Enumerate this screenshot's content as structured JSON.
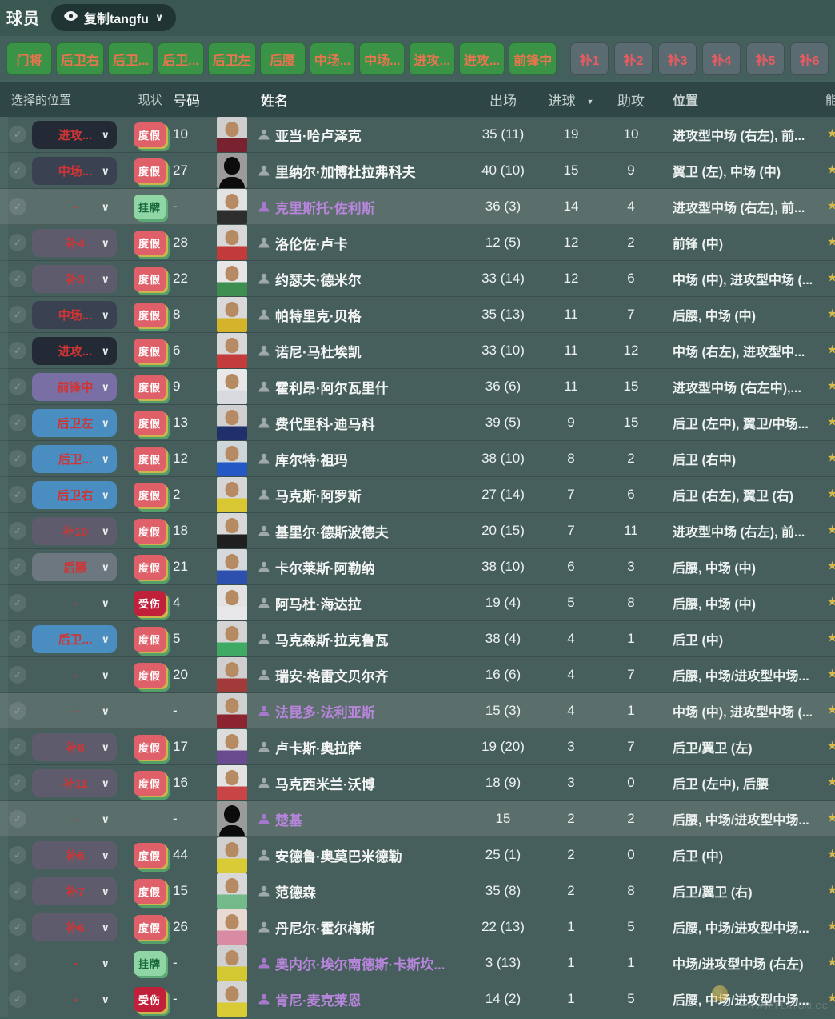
{
  "topbar": {
    "title": "球员",
    "view_dropdown": "复制tangfu"
  },
  "filters": {
    "positions": [
      "门将",
      "后卫右",
      "后卫...",
      "后卫...",
      "后卫左",
      "后腰",
      "中场...",
      "中场...",
      "进攻...",
      "进攻...",
      "前锋中"
    ],
    "subs": [
      "补1",
      "补2",
      "补3",
      "补4",
      "补5",
      "补6"
    ]
  },
  "colors": {
    "accent_green_button": "#3a9347",
    "button_text_orange": "#e9744e",
    "sub_button_gray": "#5b6b72",
    "sub_button_text_red": "#ef5a60",
    "badge_vacation": "#e0606a",
    "badge_listed": "#8fd6a4",
    "badge_injured": "#c02039",
    "purple_name": "#b885dc",
    "star_yellow": "#d9b84a"
  },
  "pill_styles": {
    "dark": "#242a35",
    "slate": "#3a4150",
    "sub": "#5e5c6c",
    "purple": "#7a6fa5",
    "blue": "#4a8dc0",
    "gray": "#6d7780",
    "none": "transparent"
  },
  "table": {
    "headers": {
      "selected_position": "选择的位置",
      "status": "现状",
      "number": "号码",
      "name": "姓名",
      "appearances": "出场",
      "goals": "进球",
      "assists": "助攻",
      "position": "位置",
      "ability_partial": "能"
    },
    "sort_column": "进球",
    "rows": [
      {
        "sel": "进攻...",
        "pill": "dark",
        "status": "度假",
        "st": "vac",
        "num": "10",
        "name": "亚当·哈卢泽克",
        "purple": false,
        "hl": false,
        "apps": "35 (11)",
        "goals": "19",
        "assists": "10",
        "pos": "进攻型中场 (右左), 前...",
        "photo": [
          "#cfcfcf",
          "#77222e"
        ]
      },
      {
        "sel": "中场...",
        "pill": "slate",
        "status": "度假",
        "st": "vac",
        "num": "27",
        "name": "里纳尔·加博杜拉弗科夫",
        "purple": false,
        "hl": false,
        "apps": "40 (10)",
        "goals": "15",
        "assists": "9",
        "pos": "翼卫 (左), 中场 (中)",
        "photo": "sil"
      },
      {
        "sel": "-",
        "pill": "none",
        "status": "挂牌",
        "st": "listed",
        "num": "-",
        "name": "克里斯托·佐利斯",
        "purple": true,
        "hl": true,
        "apps": "36 (3)",
        "goals": "14",
        "assists": "4",
        "pos": "进攻型中场 (右左), 前...",
        "photo": [
          "#e2e2e2",
          "#2e2e2e"
        ]
      },
      {
        "sel": "补4",
        "pill": "sub",
        "status": "度假",
        "st": "vac",
        "num": "28",
        "name": "洛伦佐·卢卡",
        "purple": false,
        "hl": false,
        "apps": "12 (5)",
        "goals": "12",
        "assists": "2",
        "pos": "前锋 (中)",
        "photo": [
          "#d8d8d8",
          "#c23b3b"
        ]
      },
      {
        "sel": "补3",
        "pill": "sub",
        "status": "度假",
        "st": "vac",
        "num": "22",
        "name": "约瑟夫·德米尔",
        "purple": false,
        "hl": false,
        "apps": "33 (14)",
        "goals": "12",
        "assists": "6",
        "pos": "中场 (中), 进攻型中场 (...",
        "photo": [
          "#e6e6e6",
          "#3e8e52"
        ]
      },
      {
        "sel": "中场...",
        "pill": "slate",
        "status": "度假",
        "st": "vac",
        "num": "8",
        "name": "帕特里克·贝格",
        "purple": false,
        "hl": false,
        "apps": "35 (13)",
        "goals": "11",
        "assists": "7",
        "pos": "后腰, 中场 (中)",
        "photo": [
          "#d9d9d9",
          "#d4b42a"
        ]
      },
      {
        "sel": "进攻...",
        "pill": "dark",
        "status": "度假",
        "st": "vac",
        "num": "6",
        "name": "诺尼·马杜埃凯",
        "purple": false,
        "hl": false,
        "apps": "33 (10)",
        "goals": "11",
        "assists": "12",
        "pos": "中场 (右左), 进攻型中...",
        "photo": [
          "#d8d8d8",
          "#c43b3b"
        ]
      },
      {
        "sel": "前锋中",
        "pill": "purple",
        "status": "度假",
        "st": "vac",
        "num": "9",
        "name": "霍利昂·阿尔瓦里什",
        "purple": false,
        "hl": false,
        "apps": "36 (6)",
        "goals": "11",
        "assists": "15",
        "pos": "进攻型中场 (右左中),...",
        "photo": [
          "#e8e8e8",
          "#d8dadf"
        ]
      },
      {
        "sel": "后卫左",
        "pill": "blue",
        "status": "度假",
        "st": "vac",
        "num": "13",
        "name": "费代里科·迪马科",
        "purple": false,
        "hl": false,
        "apps": "39 (5)",
        "goals": "9",
        "assists": "15",
        "pos": "后卫 (左中), 翼卫/中场...",
        "photo": [
          "#d0d0d0",
          "#20306b"
        ]
      },
      {
        "sel": "后卫...",
        "pill": "blue",
        "status": "度假",
        "st": "vac",
        "num": "12",
        "name": "库尔特·祖玛",
        "purple": false,
        "hl": false,
        "apps": "38 (10)",
        "goals": "8",
        "assists": "2",
        "pos": "后卫 (右中)",
        "photo": [
          "#cfd6da",
          "#2458c4"
        ]
      },
      {
        "sel": "后卫右",
        "pill": "blue",
        "status": "度假",
        "st": "vac",
        "num": "2",
        "name": "马克斯·阿罗斯",
        "purple": false,
        "hl": false,
        "apps": "27 (14)",
        "goals": "7",
        "assists": "6",
        "pos": "后卫 (右左), 翼卫 (右)",
        "photo": [
          "#d6d6d6",
          "#d9c832"
        ]
      },
      {
        "sel": "补10",
        "pill": "sub",
        "status": "度假",
        "st": "vac",
        "num": "18",
        "name": "基里尔·德斯波德夫",
        "purple": false,
        "hl": false,
        "apps": "20 (15)",
        "goals": "7",
        "assists": "11",
        "pos": "进攻型中场 (右左), 前...",
        "photo": [
          "#d8d8d8",
          "#1f1f1f"
        ]
      },
      {
        "sel": "后腰",
        "pill": "gray",
        "status": "度假",
        "st": "vac",
        "num": "21",
        "name": "卡尔莱斯·阿勒纳",
        "purple": false,
        "hl": false,
        "apps": "38 (10)",
        "goals": "6",
        "assists": "3",
        "pos": "后腰, 中场 (中)",
        "photo": [
          "#d6d9db",
          "#2d4fae"
        ]
      },
      {
        "sel": "-",
        "pill": "none",
        "status": "受伤",
        "st": "inj",
        "num": "4",
        "name": "阿马杜·海达拉",
        "purple": false,
        "hl": false,
        "apps": "19 (4)",
        "goals": "5",
        "assists": "8",
        "pos": "后腰, 中场 (中)",
        "photo": [
          "#e2e2e2",
          "#e8e8ea"
        ]
      },
      {
        "sel": "后卫...",
        "pill": "blue",
        "status": "度假",
        "st": "vac",
        "num": "5",
        "name": "马克森斯·拉克鲁瓦",
        "purple": false,
        "hl": false,
        "apps": "38 (4)",
        "goals": "4",
        "assists": "1",
        "pos": "后卫 (中)",
        "photo": [
          "#d4d4d4",
          "#3faa63"
        ]
      },
      {
        "sel": "-",
        "pill": "none",
        "status": "度假",
        "st": "vac",
        "num": "20",
        "name": "瑞安·格雷文贝尔齐",
        "purple": false,
        "hl": false,
        "apps": "16 (6)",
        "goals": "4",
        "assists": "7",
        "pos": "后腰, 中场/进攻型中场...",
        "photo": [
          "#cfcfcf",
          "#a33a3a"
        ]
      },
      {
        "sel": "-",
        "pill": "none",
        "status": "",
        "st": "",
        "num": "-",
        "name": "法昆多·法利亚斯",
        "purple": true,
        "hl": true,
        "apps": "15 (3)",
        "goals": "4",
        "assists": "1",
        "pos": "中场 (中), 进攻型中场 (...",
        "photo": [
          "#d0d0d0",
          "#8c2330"
        ]
      },
      {
        "sel": "补8",
        "pill": "sub",
        "status": "度假",
        "st": "vac",
        "num": "17",
        "name": "卢卡斯·奥拉萨",
        "purple": false,
        "hl": false,
        "apps": "19 (20)",
        "goals": "3",
        "assists": "7",
        "pos": "后卫/翼卫 (左)",
        "photo": [
          "#dcdcdc",
          "#6a4b8f"
        ]
      },
      {
        "sel": "补11",
        "pill": "sub",
        "status": "度假",
        "st": "vac",
        "num": "16",
        "name": "马克西米兰·沃博",
        "purple": false,
        "hl": false,
        "apps": "18 (9)",
        "goals": "3",
        "assists": "0",
        "pos": "后卫 (左中), 后腰",
        "photo": [
          "#e3e3e3",
          "#c94444"
        ]
      },
      {
        "sel": "-",
        "pill": "none",
        "status": "",
        "st": "",
        "num": "-",
        "name": "楚基",
        "purple": true,
        "hl": true,
        "apps": "15",
        "goals": "2",
        "assists": "2",
        "pos": "后腰, 中场/进攻型中场...",
        "photo": "sil"
      },
      {
        "sel": "补5",
        "pill": "sub",
        "status": "度假",
        "st": "vac",
        "num": "44",
        "name": "安德鲁·奥莫巴米德勒",
        "purple": false,
        "hl": false,
        "apps": "25 (1)",
        "goals": "2",
        "assists": "0",
        "pos": "后卫 (中)",
        "photo": [
          "#d0d0d0",
          "#d9cb35"
        ]
      },
      {
        "sel": "补7",
        "pill": "sub",
        "status": "度假",
        "st": "vac",
        "num": "15",
        "name": "范德森",
        "purple": false,
        "hl": false,
        "apps": "35 (8)",
        "goals": "2",
        "assists": "8",
        "pos": "后卫/翼卫 (右)",
        "photo": [
          "#d8d8d8",
          "#74b98a"
        ]
      },
      {
        "sel": "补6",
        "pill": "sub",
        "status": "度假",
        "st": "vac",
        "num": "26",
        "name": "丹尼尔·霍尔梅斯",
        "purple": false,
        "hl": false,
        "apps": "22 (13)",
        "goals": "1",
        "assists": "5",
        "pos": "后腰, 中场/进攻型中场...",
        "photo": [
          "#e8d9d2",
          "#d98ba4"
        ]
      },
      {
        "sel": "-",
        "pill": "none",
        "status": "挂牌",
        "st": "listed",
        "num": "-",
        "name": "奥内尔·埃尔南德斯·卡斯坎...",
        "purple": true,
        "hl": false,
        "apps": "3 (13)",
        "goals": "1",
        "assists": "1",
        "pos": "中场/进攻型中场 (右左)",
        "photo": [
          "#cfcfcf",
          "#d3c832"
        ]
      },
      {
        "sel": "-",
        "pill": "none",
        "status": "受伤",
        "st": "inj",
        "num": "-",
        "name": "肯尼·麦克莱恩",
        "purple": true,
        "hl": false,
        "apps": "14 (2)",
        "goals": "1",
        "assists": "5",
        "pos": "后腰, 中场/进攻型中场...",
        "photo": [
          "#d4d4d4",
          "#d9cb35"
        ]
      }
    ]
  },
  "watermark": {
    "text": "WWW.PLAYGM.CC"
  }
}
